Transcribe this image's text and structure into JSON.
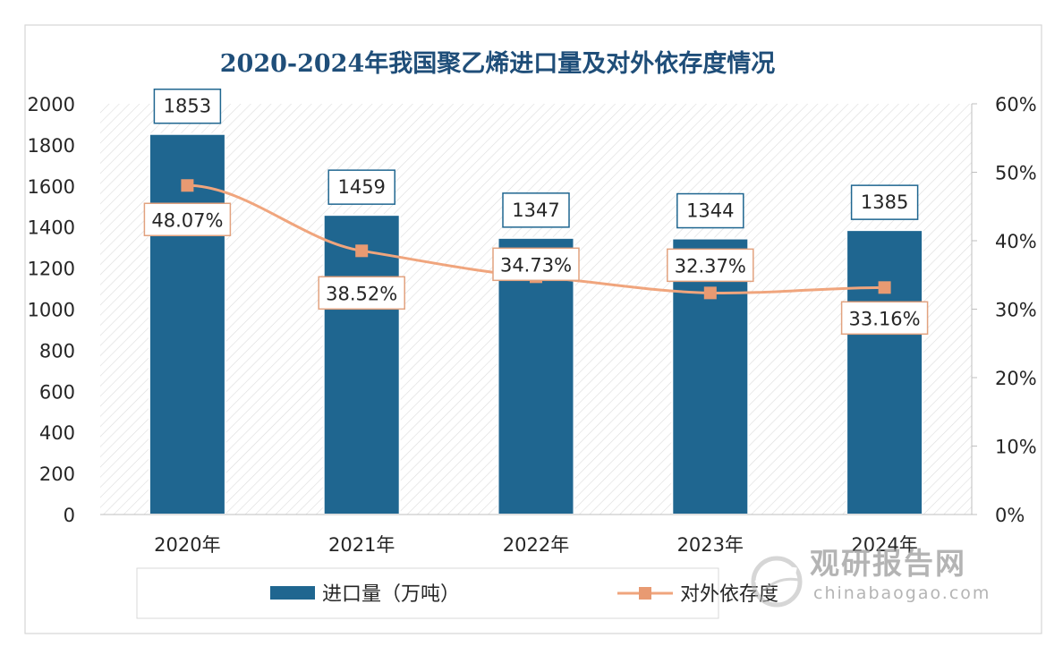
{
  "chart_data": {
    "type": "bar+line",
    "title": "2020-2024年我国聚乙烯进口量及对外依存度情况",
    "categories": [
      "2020年",
      "2021年",
      "2022年",
      "2023年",
      "2024年"
    ],
    "series": [
      {
        "name": "进口量（万吨）",
        "type": "bar",
        "axis": "left",
        "values": [
          1853,
          1459,
          1347,
          1344,
          1385
        ],
        "labels": [
          "1853",
          "1459",
          "1347",
          "1344",
          "1385"
        ],
        "color": "#1f6690"
      },
      {
        "name": "对外依存度",
        "type": "line",
        "axis": "right",
        "values": [
          48.07,
          38.52,
          34.73,
          32.37,
          33.16
        ],
        "labels": [
          "48.07%",
          "38.52%",
          "34.73%",
          "32.37%",
          "33.16%"
        ],
        "color": "#f0a57d"
      }
    ],
    "y_left": {
      "min": 0,
      "max": 2000,
      "ticks": [
        "0",
        "200",
        "400",
        "600",
        "800",
        "1000",
        "1200",
        "1400",
        "1600",
        "1800",
        "2000"
      ]
    },
    "y_right": {
      "min": 0,
      "max": 60,
      "ticks": [
        "0%",
        "10%",
        "20%",
        "30%",
        "40%",
        "50%",
        "60%"
      ]
    },
    "legend_position": "bottom"
  },
  "watermark": {
    "name_cn": "观研报告网",
    "name_en": "chinabaogao.com"
  }
}
